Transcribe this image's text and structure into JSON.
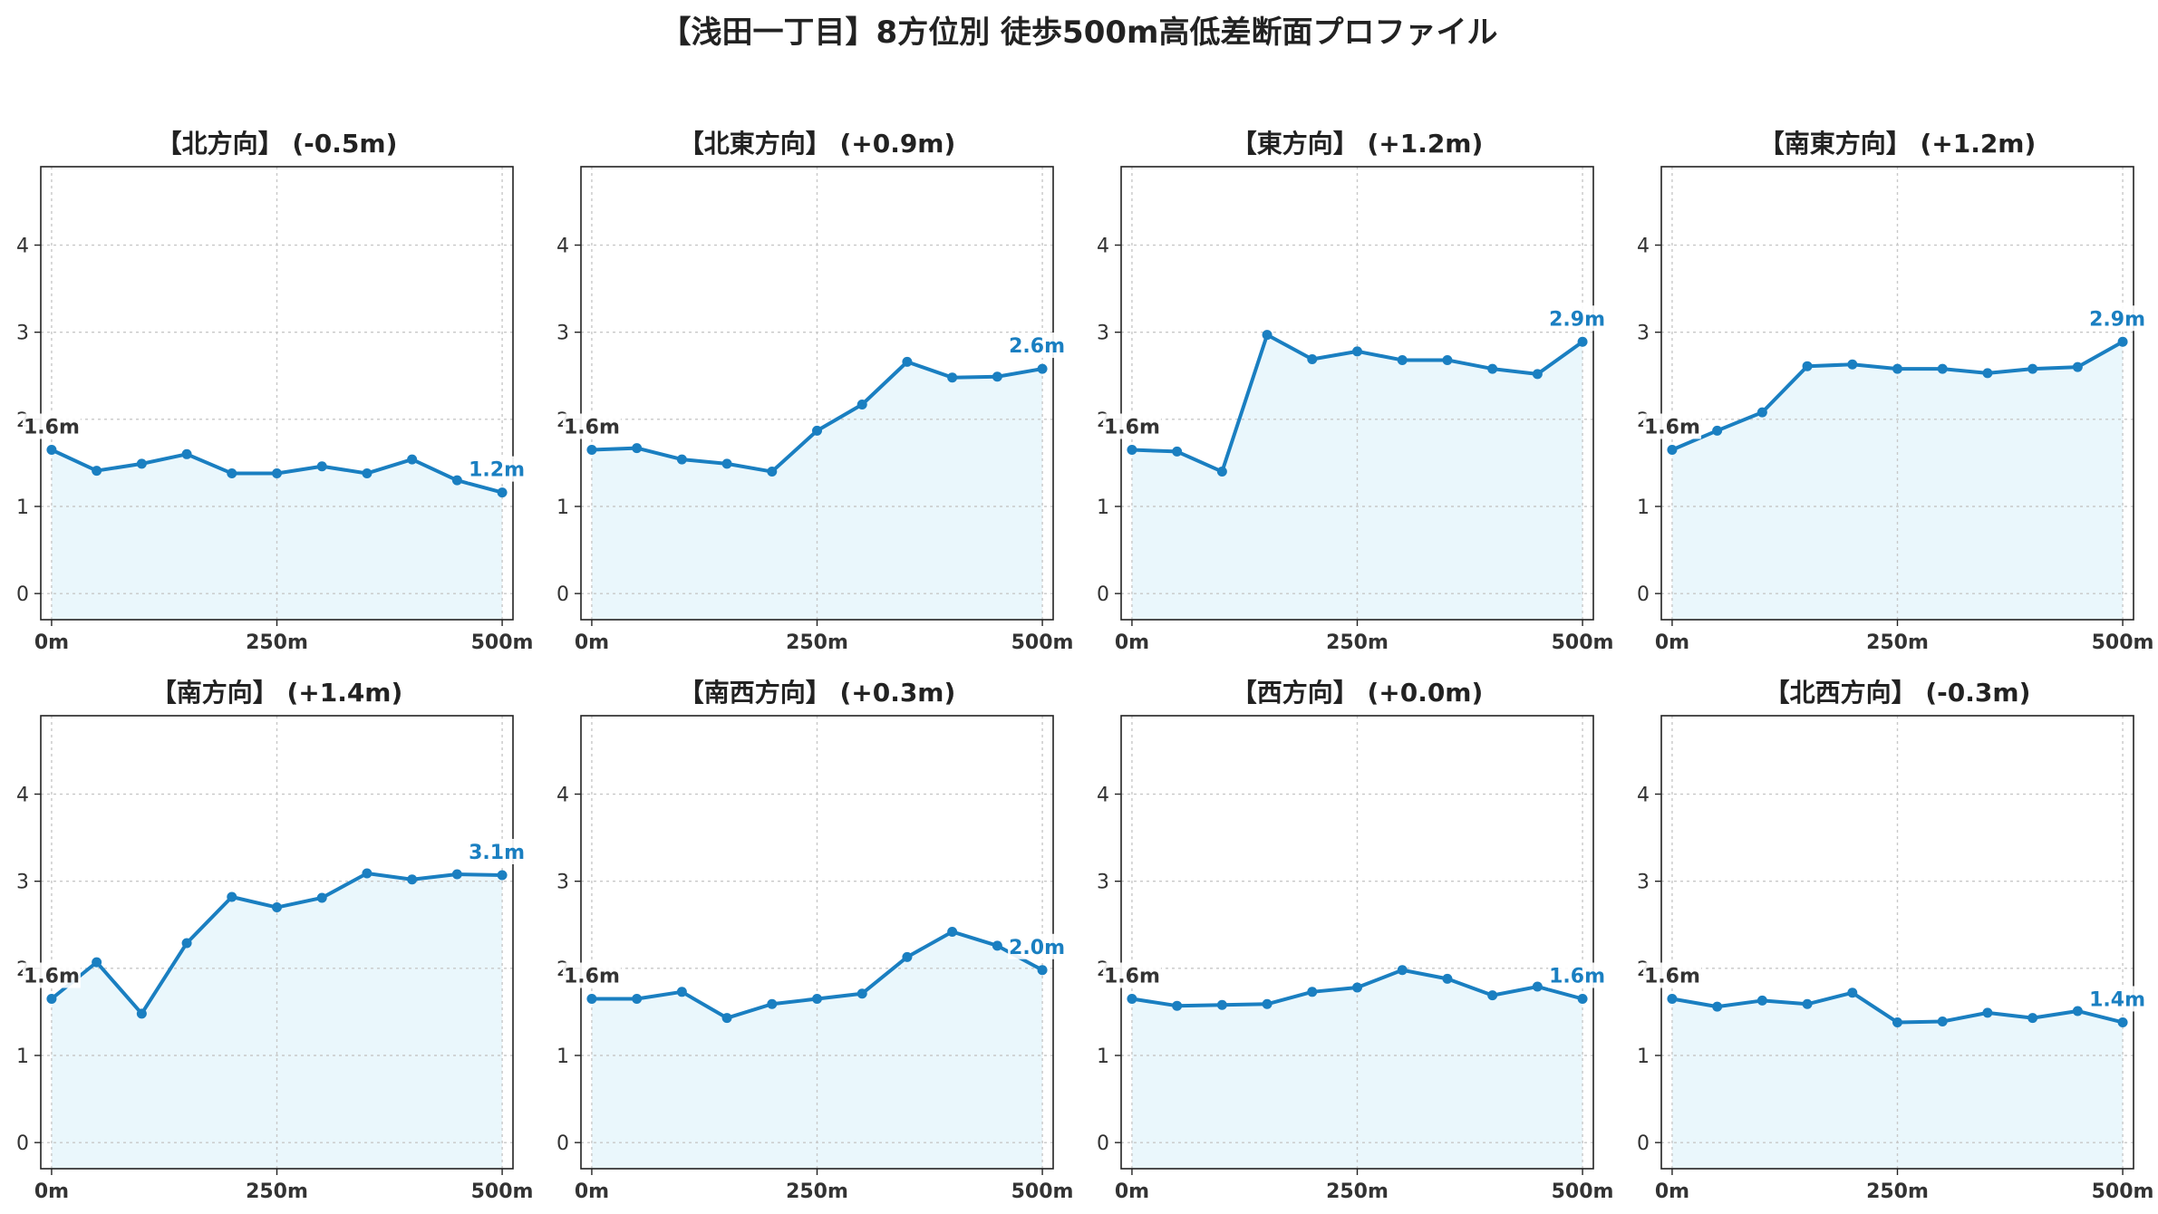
{
  "title": "【浅田一丁目】8方位別 徒歩500m高低差断面プロファイル",
  "colors": {
    "line": "#1a7fc1",
    "fill": "#eaf7fc",
    "end_label": "#1a7fc1",
    "start_label": "#333333"
  },
  "chart_data": [
    {
      "type": "area",
      "title": "【北方向】 (-0.5m)",
      "x": [
        0,
        50,
        100,
        150,
        200,
        250,
        300,
        350,
        400,
        450,
        500
      ],
      "values": [
        1.65,
        1.41,
        1.49,
        1.6,
        1.38,
        1.38,
        1.46,
        1.38,
        1.54,
        1.3,
        1.16
      ],
      "start_label": "1.6m",
      "end_label": "1.2m",
      "xticks": [
        "0m",
        "250m",
        "500m"
      ],
      "yticks": [
        "0",
        "1",
        "2",
        "3",
        "4"
      ],
      "ylim": [
        -0.3,
        4.9
      ],
      "xlim": [
        -12,
        512
      ],
      "grid": true
    },
    {
      "type": "area",
      "title": "【北東方向】 (+0.9m)",
      "x": [
        0,
        50,
        100,
        150,
        200,
        250,
        300,
        350,
        400,
        450,
        500
      ],
      "values": [
        1.65,
        1.67,
        1.54,
        1.49,
        1.4,
        1.87,
        2.17,
        2.66,
        2.48,
        2.49,
        2.58
      ],
      "start_label": "1.6m",
      "end_label": "2.6m",
      "xticks": [
        "0m",
        "250m",
        "500m"
      ],
      "yticks": [
        "0",
        "1",
        "2",
        "3",
        "4"
      ],
      "ylim": [
        -0.3,
        4.9
      ],
      "xlim": [
        -12,
        512
      ],
      "grid": true
    },
    {
      "type": "area",
      "title": "【東方向】 (+1.2m)",
      "x": [
        0,
        50,
        100,
        150,
        200,
        250,
        300,
        350,
        400,
        450,
        500
      ],
      "values": [
        1.65,
        1.63,
        1.4,
        2.97,
        2.69,
        2.78,
        2.68,
        2.68,
        2.58,
        2.52,
        2.89
      ],
      "start_label": "1.6m",
      "end_label": "2.9m",
      "xticks": [
        "0m",
        "250m",
        "500m"
      ],
      "yticks": [
        "0",
        "1",
        "2",
        "3",
        "4"
      ],
      "ylim": [
        -0.3,
        4.9
      ],
      "xlim": [
        -12,
        512
      ],
      "grid": true
    },
    {
      "type": "area",
      "title": "【南東方向】 (+1.2m)",
      "x": [
        0,
        50,
        100,
        150,
        200,
        250,
        300,
        350,
        400,
        450,
        500
      ],
      "values": [
        1.65,
        1.87,
        2.08,
        2.61,
        2.63,
        2.58,
        2.58,
        2.53,
        2.58,
        2.6,
        2.89
      ],
      "start_label": "1.6m",
      "end_label": "2.9m",
      "xticks": [
        "0m",
        "250m",
        "500m"
      ],
      "yticks": [
        "0",
        "1",
        "2",
        "3",
        "4"
      ],
      "ylim": [
        -0.3,
        4.9
      ],
      "xlim": [
        -12,
        512
      ],
      "grid": true
    },
    {
      "type": "area",
      "title": "【南方向】 (+1.4m)",
      "x": [
        0,
        50,
        100,
        150,
        200,
        250,
        300,
        350,
        400,
        450,
        500
      ],
      "values": [
        1.65,
        2.07,
        1.48,
        2.29,
        2.82,
        2.7,
        2.81,
        3.09,
        3.02,
        3.08,
        3.07
      ],
      "start_label": "1.6m",
      "end_label": "3.1m",
      "xticks": [
        "0m",
        "250m",
        "500m"
      ],
      "yticks": [
        "0",
        "1",
        "2",
        "3",
        "4"
      ],
      "ylim": [
        -0.3,
        4.9
      ],
      "xlim": [
        -12,
        512
      ],
      "grid": true
    },
    {
      "type": "area",
      "title": "【南西方向】 (+0.3m)",
      "x": [
        0,
        50,
        100,
        150,
        200,
        250,
        300,
        350,
        400,
        450,
        500
      ],
      "values": [
        1.65,
        1.65,
        1.73,
        1.43,
        1.59,
        1.65,
        1.71,
        2.13,
        2.42,
        2.26,
        1.98
      ],
      "start_label": "1.6m",
      "end_label": "2.0m",
      "xticks": [
        "0m",
        "250m",
        "500m"
      ],
      "yticks": [
        "0",
        "1",
        "2",
        "3",
        "4"
      ],
      "ylim": [
        -0.3,
        4.9
      ],
      "xlim": [
        -12,
        512
      ],
      "grid": true
    },
    {
      "type": "area",
      "title": "【西方向】 (+0.0m)",
      "x": [
        0,
        50,
        100,
        150,
        200,
        250,
        300,
        350,
        400,
        450,
        500
      ],
      "values": [
        1.65,
        1.57,
        1.58,
        1.59,
        1.73,
        1.78,
        1.98,
        1.88,
        1.69,
        1.79,
        1.65
      ],
      "start_label": "1.6m",
      "end_label": "1.6m",
      "xticks": [
        "0m",
        "250m",
        "500m"
      ],
      "yticks": [
        "0",
        "1",
        "2",
        "3",
        "4"
      ],
      "ylim": [
        -0.3,
        4.9
      ],
      "xlim": [
        -12,
        512
      ],
      "grid": true
    },
    {
      "type": "area",
      "title": "【北西方向】 (-0.3m)",
      "x": [
        0,
        50,
        100,
        150,
        200,
        250,
        300,
        350,
        400,
        450,
        500
      ],
      "values": [
        1.65,
        1.56,
        1.63,
        1.59,
        1.72,
        1.38,
        1.39,
        1.49,
        1.43,
        1.51,
        1.38
      ],
      "start_label": "1.6m",
      "end_label": "1.4m",
      "xticks": [
        "0m",
        "250m",
        "500m"
      ],
      "yticks": [
        "0",
        "1",
        "2",
        "3",
        "4"
      ],
      "ylim": [
        -0.3,
        4.9
      ],
      "xlim": [
        -12,
        512
      ],
      "grid": true
    }
  ]
}
